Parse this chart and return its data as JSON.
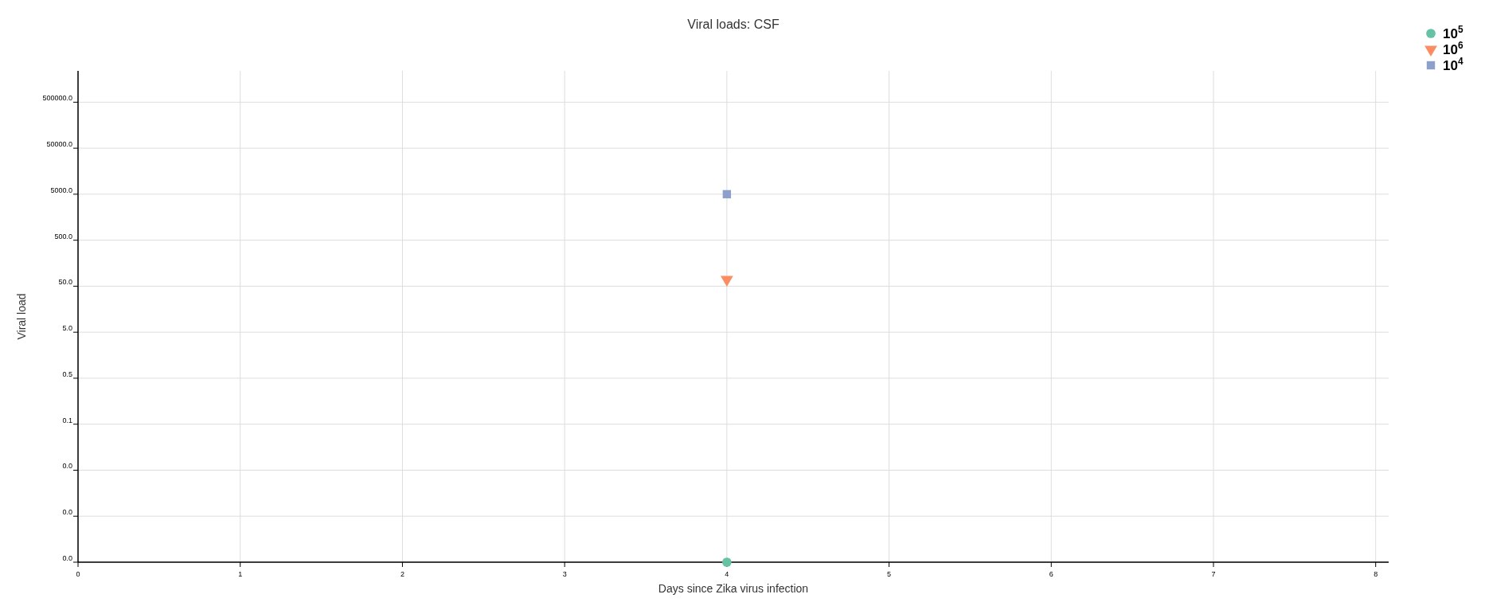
{
  "chart_data": {
    "type": "scatter",
    "title": "Viral loads: CSF",
    "xlabel": "Days since Zika virus infection",
    "ylabel": "Viral load",
    "log": "y",
    "grid": true,
    "legend": "top right",
    "xlim": [
      0,
      8.08
    ],
    "xticks": [
      0,
      1,
      2,
      3,
      4,
      5,
      6,
      7,
      8
    ],
    "ylim": [
      5e-05,
      2400000
    ],
    "x": [
      4
    ],
    "yticks": [
      {
        "value": 5e-05,
        "label": "0.0"
      },
      {
        "value": 0.0005,
        "label": "0.0"
      },
      {
        "value": 0.005,
        "label": "0.0"
      },
      {
        "value": 0.05,
        "label": "0.1"
      },
      {
        "value": 0.5,
        "label": "0.5"
      },
      {
        "value": 5,
        "label": "5.0"
      },
      {
        "value": 50,
        "label": "50.0"
      },
      {
        "value": 500,
        "label": "500.0"
      },
      {
        "value": 5000,
        "label": "5000.0"
      },
      {
        "value": 50000,
        "label": "50000.0"
      },
      {
        "value": 500000,
        "label": "500000.0"
      }
    ],
    "series": [
      {
        "name": "10$^{5}$",
        "color": "#66c2a5",
        "marker": "circle",
        "values": [
          5e-05
        ]
      },
      {
        "name": "10$^{6}$",
        "color": "#fc8d62",
        "marker": "triangle",
        "values": [
          70
        ]
      },
      {
        "name": "10$^{4}$",
        "color": "#8da0cb",
        "marker": "square",
        "values": [
          5000
        ]
      }
    ]
  }
}
